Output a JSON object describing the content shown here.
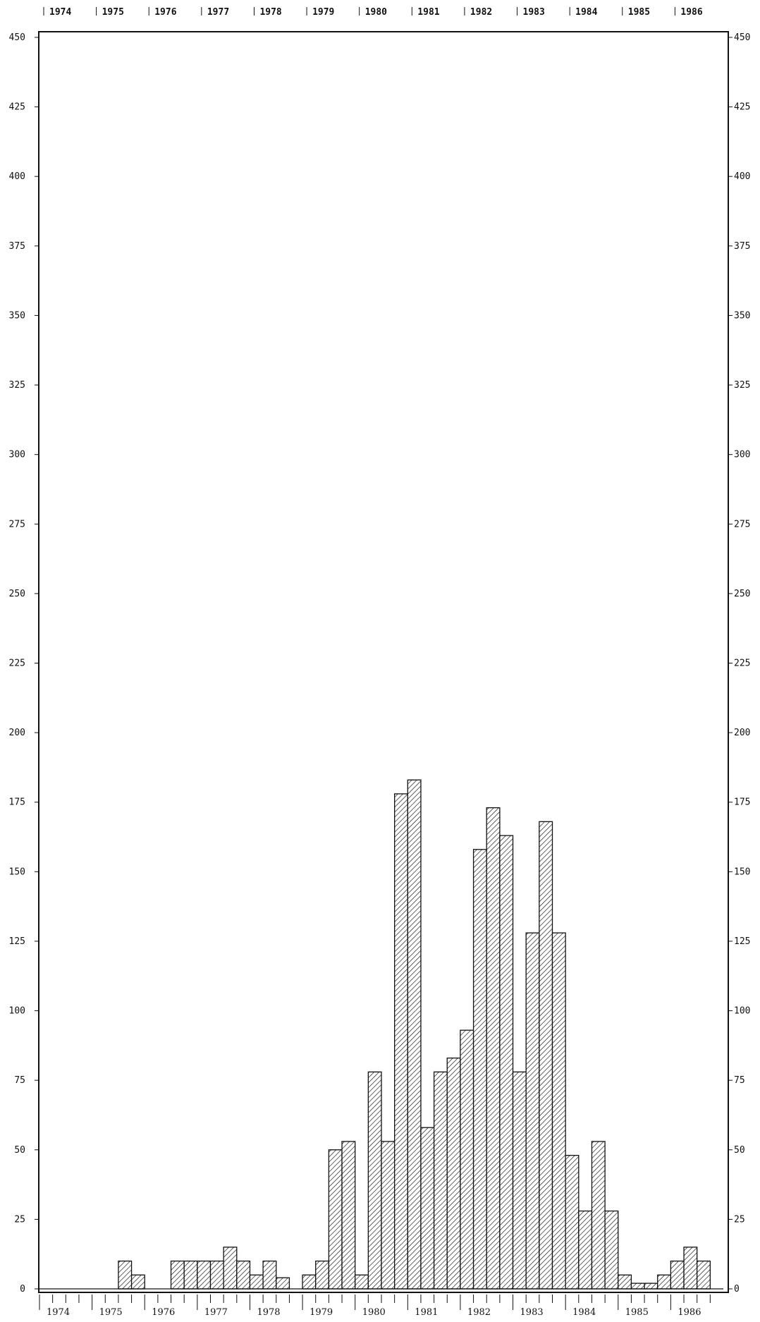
{
  "chart_data": {
    "type": "bar",
    "title": "",
    "xlabel": "",
    "ylabel": "",
    "ylim": [
      0,
      450
    ],
    "y_ticks": [
      0,
      25,
      50,
      75,
      100,
      125,
      150,
      175,
      200,
      225,
      250,
      275,
      300,
      325,
      350,
      375,
      400,
      425,
      450
    ],
    "y_tick_labels": [
      "0",
      "25",
      "50",
      "75",
      "100",
      "125",
      "150",
      "175",
      "200",
      "225",
      "250",
      "275",
      "300",
      "325",
      "350",
      "375",
      "400",
      "425",
      "450"
    ],
    "years": [
      "1974",
      "1975",
      "1976",
      "1977",
      "1978",
      "1979",
      "1980",
      "1981",
      "1982",
      "1983",
      "1984",
      "1985",
      "1986"
    ],
    "period": "quarter",
    "categories": [
      "1974 Q1",
      "1974 Q2",
      "1974 Q3",
      "1974 Q4",
      "1975 Q1",
      "1975 Q2",
      "1975 Q3",
      "1975 Q4",
      "1976 Q1",
      "1976 Q2",
      "1976 Q3",
      "1976 Q4",
      "1977 Q1",
      "1977 Q2",
      "1977 Q3",
      "1977 Q4",
      "1978 Q1",
      "1978 Q2",
      "1978 Q3",
      "1978 Q4",
      "1979 Q1",
      "1979 Q2",
      "1979 Q3",
      "1979 Q4",
      "1980 Q1",
      "1980 Q2",
      "1980 Q3",
      "1980 Q4",
      "1981 Q1",
      "1981 Q2",
      "1981 Q3",
      "1981 Q4",
      "1982 Q1",
      "1982 Q2",
      "1982 Q3",
      "1982 Q4",
      "1983 Q1",
      "1983 Q2",
      "1983 Q3",
      "1983 Q4",
      "1984 Q1",
      "1984 Q2",
      "1984 Q3",
      "1984 Q4",
      "1985 Q1",
      "1985 Q2",
      "1985 Q3",
      "1985 Q4",
      "1986 Q1",
      "1986 Q2",
      "1986 Q3"
    ],
    "values": [
      0,
      0,
      0,
      0,
      0,
      0,
      10,
      5,
      0,
      0,
      10,
      10,
      10,
      10,
      15,
      10,
      5,
      10,
      4,
      0,
      5,
      10,
      50,
      53,
      5,
      78,
      53,
      178,
      183,
      58,
      78,
      83,
      93,
      158,
      173,
      163,
      78,
      128,
      168,
      128,
      48,
      28,
      53,
      28,
      5,
      2,
      2,
      5,
      10,
      15,
      10
    ],
    "grid": false,
    "legend": "none",
    "bar_fill": "diagonal-hatch",
    "colors": {
      "ink": "#111111",
      "background": "#ffffff"
    }
  }
}
